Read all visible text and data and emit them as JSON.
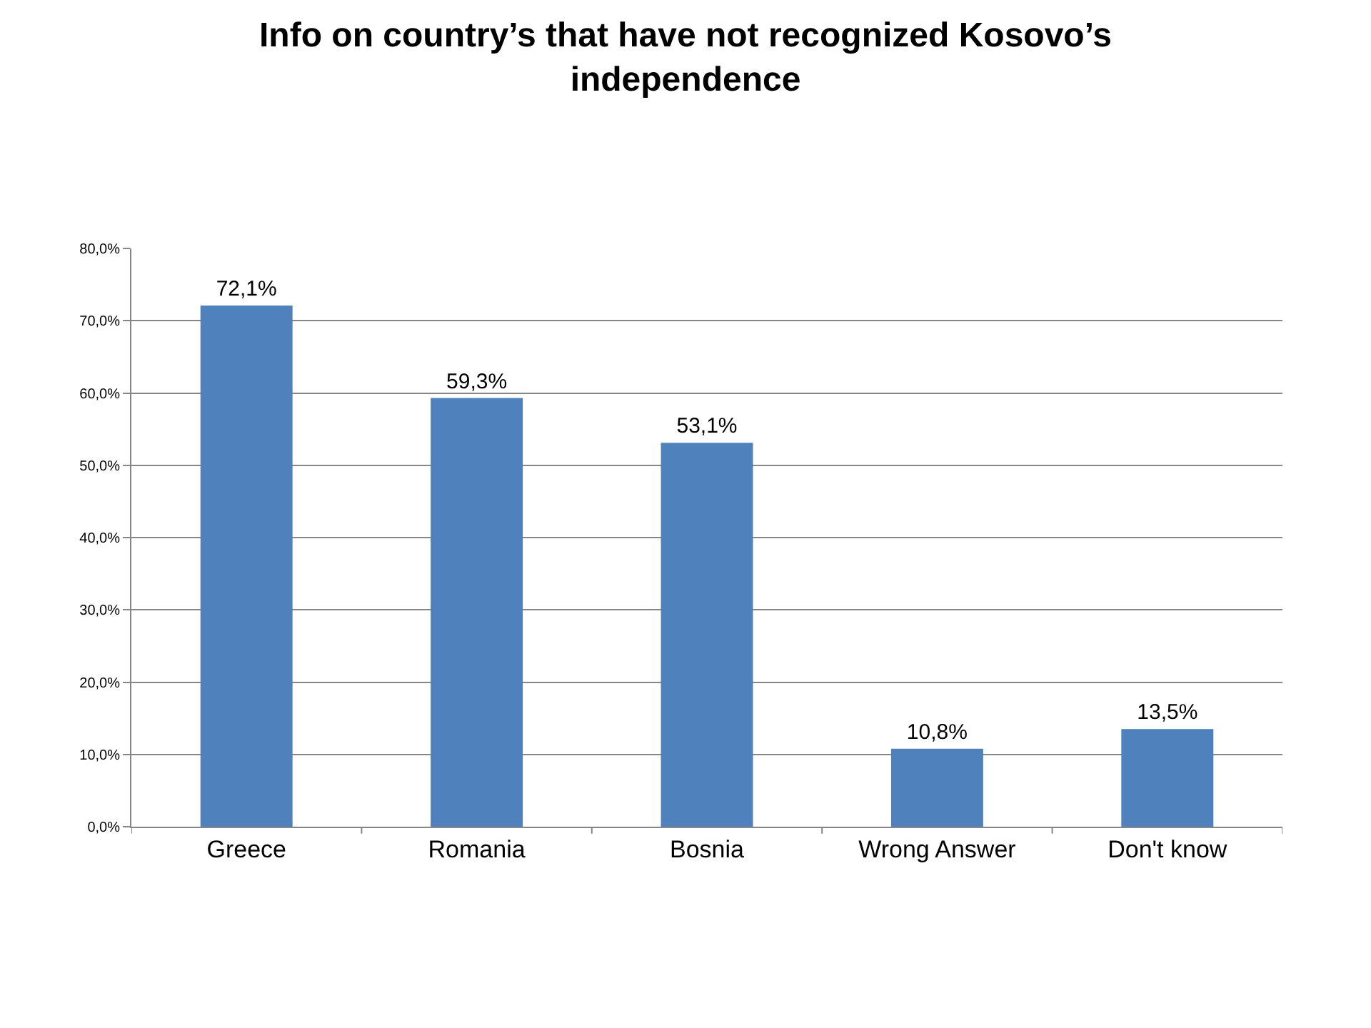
{
  "chart_data": {
    "type": "bar",
    "title": "Info on country’s that have not recognized Kosovo’s independence",
    "categories": [
      "Greece",
      "Romania",
      "Bosnia",
      "Wrong Answer",
      "Don't know"
    ],
    "values": [
      72.1,
      59.3,
      53.1,
      10.8,
      13.5
    ],
    "value_labels": [
      "72,1%",
      "59,3%",
      "53,1%",
      "10,8%",
      "13,5%"
    ],
    "color": "#4f81bd",
    "ylim": [
      0,
      80
    ],
    "yticks": [
      {
        "value": 0,
        "label": "0,0%"
      },
      {
        "value": 10,
        "label": "10,0%"
      },
      {
        "value": 20,
        "label": "20,0%"
      },
      {
        "value": 30,
        "label": "30,0%"
      },
      {
        "value": 40,
        "label": "40,0%"
      },
      {
        "value": 50,
        "label": "50,0%"
      },
      {
        "value": 60,
        "label": "60,0%"
      },
      {
        "value": 70,
        "label": "70,0%"
      },
      {
        "value": 80,
        "label": "80,0%"
      }
    ],
    "grid": "y",
    "legend": false
  }
}
